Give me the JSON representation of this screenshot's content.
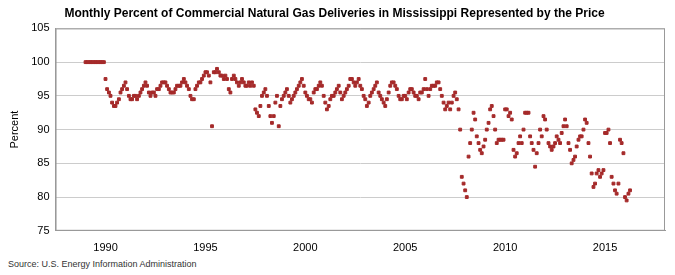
{
  "chart_data": {
    "type": "scatter",
    "title": "Monthly Percent of Commercial Natural Gas Deliveries in Mississippi Represented by the Price",
    "y_label": "Percent",
    "source": "Source: U.S. Energy Information Administration",
    "color": "#a52a2a",
    "marker": "square",
    "grid": true,
    "xlim": [
      1987.5,
      2018
    ],
    "xticks": [
      1990,
      1995,
      2000,
      2005,
      2010,
      2015
    ],
    "ylim": [
      75,
      105
    ],
    "yticks": [
      75,
      80,
      85,
      90,
      95,
      100,
      105
    ],
    "x": [
      1989.0,
      1989.08,
      1989.17,
      1989.25,
      1989.33,
      1989.42,
      1989.5,
      1989.58,
      1989.67,
      1989.75,
      1989.83,
      1989.92,
      1990.0,
      1990.08,
      1990.17,
      1990.25,
      1990.33,
      1990.42,
      1990.5,
      1990.58,
      1990.67,
      1990.75,
      1990.83,
      1990.92,
      1991.0,
      1991.08,
      1991.17,
      1991.25,
      1991.33,
      1991.42,
      1991.5,
      1991.58,
      1991.67,
      1991.75,
      1991.83,
      1991.92,
      1992.0,
      1992.08,
      1992.17,
      1992.25,
      1992.33,
      1992.42,
      1992.5,
      1992.58,
      1992.67,
      1992.75,
      1992.83,
      1992.92,
      1993.0,
      1993.08,
      1993.17,
      1993.25,
      1993.33,
      1993.42,
      1993.5,
      1993.58,
      1993.67,
      1993.75,
      1993.83,
      1993.92,
      1994.0,
      1994.08,
      1994.17,
      1994.25,
      1994.33,
      1994.42,
      1994.5,
      1994.58,
      1994.67,
      1994.75,
      1994.83,
      1994.92,
      1995.0,
      1995.08,
      1995.17,
      1995.25,
      1995.33,
      1995.42,
      1995.5,
      1995.58,
      1995.67,
      1995.75,
      1995.83,
      1995.92,
      1996.0,
      1996.08,
      1996.17,
      1996.25,
      1996.33,
      1996.42,
      1996.5,
      1996.58,
      1996.67,
      1996.75,
      1996.83,
      1996.92,
      1997.0,
      1997.08,
      1997.17,
      1997.25,
      1997.33,
      1997.42,
      1997.5,
      1997.58,
      1997.67,
      1997.75,
      1997.83,
      1997.92,
      1998.0,
      1998.08,
      1998.17,
      1998.25,
      1998.33,
      1998.42,
      1998.5,
      1998.58,
      1998.67,
      1998.75,
      1998.83,
      1998.92,
      1999.0,
      1999.08,
      1999.17,
      1999.25,
      1999.33,
      1999.42,
      1999.5,
      1999.58,
      1999.67,
      1999.75,
      1999.83,
      1999.92,
      2000.0,
      2000.08,
      2000.17,
      2000.25,
      2000.33,
      2000.42,
      2000.5,
      2000.58,
      2000.67,
      2000.75,
      2000.83,
      2000.92,
      2001.0,
      2001.08,
      2001.17,
      2001.25,
      2001.33,
      2001.42,
      2001.5,
      2001.58,
      2001.67,
      2001.75,
      2001.83,
      2001.92,
      2002.0,
      2002.08,
      2002.17,
      2002.25,
      2002.33,
      2002.42,
      2002.5,
      2002.58,
      2002.67,
      2002.75,
      2002.83,
      2002.92,
      2003.0,
      2003.08,
      2003.17,
      2003.25,
      2003.33,
      2003.42,
      2003.5,
      2003.58,
      2003.67,
      2003.75,
      2003.83,
      2003.92,
      2004.0,
      2004.08,
      2004.17,
      2004.25,
      2004.33,
      2004.42,
      2004.5,
      2004.58,
      2004.67,
      2004.75,
      2004.83,
      2004.92,
      2005.0,
      2005.08,
      2005.17,
      2005.25,
      2005.33,
      2005.42,
      2005.5,
      2005.58,
      2005.67,
      2005.75,
      2005.83,
      2005.92,
      2006.0,
      2006.08,
      2006.17,
      2006.25,
      2006.33,
      2006.42,
      2006.5,
      2006.58,
      2006.67,
      2006.75,
      2006.83,
      2006.92,
      2007.0,
      2007.08,
      2007.17,
      2007.25,
      2007.33,
      2007.42,
      2007.5,
      2007.58,
      2007.67,
      2007.75,
      2007.83,
      2007.92,
      2008.0,
      2008.08,
      2008.17,
      2008.25,
      2008.33,
      2008.42,
      2008.5,
      2008.58,
      2008.67,
      2008.75,
      2008.83,
      2008.92,
      2009.0,
      2009.08,
      2009.17,
      2009.25,
      2009.33,
      2009.42,
      2009.5,
      2009.58,
      2009.67,
      2009.75,
      2009.83,
      2009.92,
      2010.0,
      2010.08,
      2010.17,
      2010.25,
      2010.33,
      2010.42,
      2010.5,
      2010.58,
      2010.67,
      2010.75,
      2010.83,
      2010.92,
      2011.0,
      2011.08,
      2011.17,
      2011.25,
      2011.33,
      2011.42,
      2011.5,
      2011.58,
      2011.67,
      2011.75,
      2011.83,
      2011.92,
      2012.0,
      2012.08,
      2012.17,
      2012.25,
      2012.33,
      2012.42,
      2012.5,
      2012.58,
      2012.67,
      2012.75,
      2012.83,
      2012.92,
      2013.0,
      2013.08,
      2013.17,
      2013.25,
      2013.33,
      2013.42,
      2013.5,
      2013.58,
      2013.67,
      2013.75,
      2013.83,
      2013.92,
      2014.0,
      2014.08,
      2014.17,
      2014.25,
      2014.33,
      2014.42,
      2014.5,
      2014.58,
      2014.67,
      2014.75,
      2014.83,
      2014.92,
      2015.0,
      2015.08,
      2015.17,
      2015.25,
      2015.33,
      2015.42,
      2015.5,
      2015.58,
      2015.67,
      2015.75,
      2015.83,
      2015.92,
      2016.0,
      2016.08,
      2016.17,
      2016.25
    ],
    "values": [
      100,
      100,
      100,
      100,
      100,
      100,
      100,
      100,
      100,
      100,
      100,
      100,
      97.5,
      96,
      95.5,
      95,
      94,
      93.5,
      93.5,
      94,
      94.5,
      95.5,
      96,
      96.5,
      97,
      96,
      95,
      94.5,
      94.5,
      95,
      95,
      94.5,
      95,
      95.5,
      96,
      96.5,
      97,
      96.5,
      95.5,
      95,
      95.5,
      95.5,
      95,
      96,
      96,
      96.5,
      97,
      97,
      97,
      96.5,
      96,
      95.5,
      95.5,
      95.5,
      96,
      96.5,
      96.5,
      96.5,
      97,
      97.5,
      97,
      96.5,
      96,
      95,
      94.5,
      94.5,
      96,
      96.5,
      97,
      97,
      97.5,
      98,
      98.5,
      98.5,
      98,
      97,
      90.5,
      98.5,
      98.5,
      99,
      98.5,
      98,
      98,
      97.5,
      98,
      97.5,
      96,
      95.5,
      97.5,
      98,
      97.5,
      97,
      96.5,
      97,
      97.5,
      97,
      96.5,
      96.5,
      97,
      96.5,
      97,
      96.5,
      93,
      92.5,
      92,
      93.5,
      95,
      95.5,
      96,
      95,
      93.5,
      92,
      91,
      92,
      94,
      95,
      90.5,
      93.5,
      94.5,
      95,
      95.5,
      96,
      95,
      94,
      94.5,
      95,
      95.5,
      96,
      96.5,
      97,
      97.5,
      96.5,
      95.5,
      95,
      94.5,
      94.5,
      94,
      95.5,
      96,
      96,
      96.5,
      97,
      96.5,
      95,
      94,
      93,
      93.5,
      94.5,
      95,
      95,
      95.5,
      96,
      96.5,
      95.5,
      94.5,
      95,
      95.5,
      96,
      96.5,
      97.5,
      97.5,
      97,
      96.5,
      97,
      97.5,
      96.5,
      96,
      95,
      94.5,
      93.5,
      94,
      95,
      95.5,
      96,
      96.5,
      97,
      95.5,
      95,
      94.5,
      94,
      93.5,
      94.5,
      95.5,
      96.5,
      97,
      97,
      96.5,
      96,
      95,
      94.5,
      94.5,
      95,
      95,
      94.5,
      95.5,
      96,
      96,
      95.5,
      95,
      95,
      94.5,
      95.5,
      95.5,
      96,
      97.5,
      96,
      95,
      96,
      96.5,
      96.5,
      96.5,
      97,
      97,
      96,
      95,
      94,
      93,
      93.5,
      94,
      93,
      94,
      95,
      95.5,
      94.5,
      93,
      90,
      83,
      82,
      81,
      80,
      86,
      88,
      90,
      92.5,
      91.5,
      89,
      88,
      87,
      86.5,
      87.5,
      88.5,
      90,
      91,
      93,
      93.5,
      92,
      90,
      88,
      88.5,
      88.5,
      88.5,
      88.5,
      93,
      93,
      92,
      92.5,
      91.5,
      87,
      86,
      86.5,
      88,
      89,
      88,
      90,
      92.5,
      92.5,
      92.5,
      89,
      88,
      87,
      84.5,
      86.5,
      88,
      90,
      89,
      92,
      91.5,
      90,
      88,
      87.5,
      87,
      87.5,
      88,
      89,
      88.5,
      88,
      89.5,
      90.5,
      91.5,
      90.5,
      88,
      87,
      85,
      85.5,
      86,
      87.5,
      88.5,
      89,
      89,
      90,
      91.5,
      91,
      88,
      86,
      83.5,
      81.5,
      82,
      83.5,
      84,
      83,
      83.5,
      84,
      89.5,
      89.5,
      90,
      88,
      83,
      82,
      81,
      80.5,
      82,
      88.5,
      88,
      86.5,
      80,
      79.5,
      80.5,
      81
    ]
  }
}
